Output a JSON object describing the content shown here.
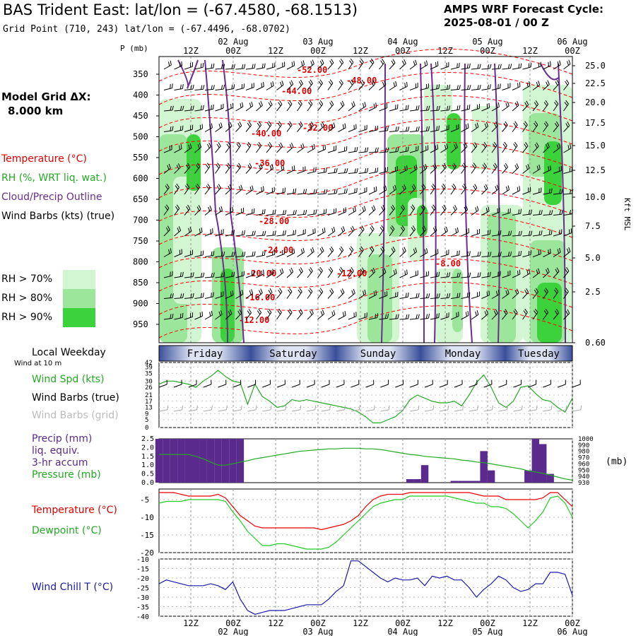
{
  "header": {
    "title": "BAS Trident East:  lat/lon = (-67.4580, -68.1513)",
    "grid_point": "Grid Point (710, 243) lat/lon = (-67.4496, -68.0702)",
    "cycle_line1": "AMPS WRF Forecast Cycle:",
    "cycle_line2": "2025-08-01 / 00  Z"
  },
  "model_grid": {
    "label": "Model Grid ΔX:",
    "value": "8.000 km"
  },
  "time_axis": {
    "hour_labels": [
      "12Z",
      "00Z",
      "12Z",
      "00Z",
      "12Z",
      "00Z",
      "12Z",
      "00Z",
      "12Z",
      "00Z"
    ],
    "date_labels": [
      "02 Aug",
      "03 Aug",
      "04 Aug",
      "05 Aug",
      "06 Aug"
    ]
  },
  "panel_top": {
    "p_label": "P (mb)",
    "kft_label": "Kft MSL",
    "left_legend": {
      "temperature": "Temperature (°C)",
      "rh": "RH (%, WRT liq. wat.)",
      "cloud": "Cloud/Precip Outline",
      "wind": "Wind Barbs (kts) (true)"
    },
    "rh_legend": [
      "RH > 70%",
      "RH > 80%",
      "RH > 90%"
    ],
    "rh_colors": [
      "#d2f5d2",
      "#9be69b",
      "#3cd23c"
    ],
    "pressure_ticks": [
      "350",
      "400",
      "450",
      "500",
      "550",
      "600",
      "650",
      "700",
      "750",
      "800",
      "850",
      "900",
      "950"
    ],
    "height_ticks": [
      "25.0",
      "22.5",
      "20.0",
      "17.5",
      "15.0",
      "12.5",
      "10.0",
      "7.5",
      "5.0",
      "2.5",
      "0.60"
    ],
    "temp_labels": [
      "-52.00",
      "-48.00",
      "-44.00",
      "-32.00",
      "-40.00",
      "-36.00",
      "-28.00",
      "-24.00",
      "-20.00",
      "-16.00",
      "-12.00",
      "-12.00",
      "-8.00"
    ],
    "colors": {
      "temperature": "#ff0000",
      "cloud": "#6b2d8f",
      "barb": "#000000"
    }
  },
  "weekday_bar": {
    "label": "Local Weekday",
    "days": [
      "Friday",
      "Saturday",
      "Sunday",
      "Monday",
      "Tuesday"
    ]
  },
  "chart_data": [
    {
      "type": "line",
      "title": "",
      "sub_label": "Wind at 10 m",
      "series": [
        {
          "name": "Wind Spd (kts)",
          "color": "#22aa22",
          "values": [
            28,
            30,
            30,
            29,
            28,
            26,
            30,
            33,
            37,
            33,
            30,
            29,
            15,
            28,
            20,
            17,
            13,
            14,
            18,
            17,
            18,
            17,
            16,
            15,
            14,
            13,
            12,
            10,
            7,
            3,
            3,
            5,
            7,
            11,
            18,
            21,
            19,
            17,
            16,
            16,
            17,
            14,
            21,
            29,
            34,
            26,
            16,
            13,
            17,
            26,
            27,
            22,
            18,
            17,
            13,
            10,
            19
          ]
        }
      ],
      "legend_labels": [
        "Wind Spd (kts)",
        "Wind Barbs (true)",
        "Wind Barbs (grid)"
      ],
      "yticks": [
        "42",
        "39",
        "35",
        "30",
        "26",
        "21",
        "17",
        "13",
        "9",
        "5",
        "0"
      ],
      "ylim": [
        0,
        42
      ]
    },
    {
      "type": "bar",
      "title": "",
      "series": [
        {
          "name": "Precip (mm) liq. equiv. 3-hr accum",
          "color": "#5a2a8c",
          "values": [
            2.5,
            2.5,
            2.5,
            2.5,
            2.5,
            2.5,
            2.5,
            2.5,
            2.5,
            2.5,
            2.5,
            2.5,
            0,
            0,
            0,
            0,
            0,
            0,
            0,
            0,
            0,
            0,
            0,
            0,
            0,
            0,
            0,
            0,
            0,
            0,
            0,
            0,
            0,
            0,
            0.2,
            0.2,
            1,
            0,
            0,
            0,
            0.1,
            0.1,
            0.1,
            0.1,
            1.8,
            0.7,
            0,
            0,
            0,
            0,
            0.7,
            2.5,
            2.2,
            0.5,
            0,
            0,
            0
          ]
        },
        {
          "name": "Pressure (mb)",
          "color": "#22aa22",
          "values": [
            975,
            975,
            975,
            975,
            975,
            972,
            968,
            963,
            958,
            958,
            960,
            963,
            965,
            968,
            970,
            972,
            974,
            976,
            978,
            980,
            981,
            982,
            983,
            984,
            984,
            985,
            985,
            985,
            984,
            984,
            983,
            981,
            979,
            977,
            975,
            974,
            972,
            971,
            970,
            969,
            968,
            966,
            965,
            963,
            962,
            960,
            958,
            956,
            954,
            952,
            949,
            947,
            945,
            942,
            939,
            936,
            934
          ]
        }
      ],
      "legend_labels": [
        "Precip (mm)",
        "liq. equiv.",
        "3-hr accum",
        "Pressure (mb)"
      ],
      "yticks_left": [
        "2.5",
        "2.0",
        "1.5",
        "1.0",
        "0.5",
        "0.0"
      ],
      "yticks_right": [
        "1000",
        "990",
        "980",
        "970",
        "960",
        "950",
        "940",
        "930"
      ],
      "unit_right": "(mb)",
      "ylim_left": [
        0,
        2.5
      ],
      "ylim_right": [
        930,
        1000
      ]
    },
    {
      "type": "line",
      "title": "",
      "series": [
        {
          "name": "Temperature (°C)",
          "color": "#ee0000",
          "values": [
            -3,
            -3,
            -3,
            -3.5,
            -4,
            -4,
            -4,
            -4,
            -3.5,
            -4.5,
            -7,
            -9.5,
            -11,
            -12.5,
            -13,
            -13,
            -13,
            -13,
            -13,
            -13,
            -13,
            -13,
            -13.5,
            -13,
            -12.5,
            -12,
            -11,
            -9.5,
            -7,
            -5,
            -4,
            -3.5,
            -3.5,
            -3.5,
            -3,
            -3,
            -3,
            -3,
            -3,
            -3,
            -3,
            -3,
            -3,
            -3.5,
            -4,
            -4,
            -4,
            -5,
            -5,
            -5,
            -5,
            -5,
            -4.5,
            -3,
            -3,
            -5,
            -7
          ]
        },
        {
          "name": "Dewpoint (°C)",
          "color": "#22cc22",
          "values": [
            -6,
            -5.5,
            -5.5,
            -5.5,
            -5,
            -5,
            -5,
            -5,
            -5,
            -5.5,
            -8.5,
            -11,
            -14,
            -16,
            -18,
            -18,
            -17.5,
            -17.5,
            -18,
            -18.5,
            -19,
            -19,
            -19,
            -18.5,
            -17,
            -15,
            -13,
            -11,
            -9,
            -7,
            -6,
            -5.5,
            -5,
            -5,
            -4,
            -4,
            -4,
            -4,
            -4,
            -4,
            -4.5,
            -5,
            -5.5,
            -6,
            -6,
            -7,
            -7,
            -7.5,
            -9,
            -11,
            -13,
            -11,
            -8.5,
            -4.5,
            -4,
            -6,
            -10
          ]
        }
      ],
      "legend_labels": [
        "Temperature (°C)",
        "Dewpoint (°C)"
      ],
      "yticks": [
        "-5",
        "-10",
        "-15",
        "-20"
      ],
      "ylim": [
        -20,
        -2
      ]
    },
    {
      "type": "line",
      "title": "",
      "series": [
        {
          "name": "Wind Chill T (°C)",
          "color": "#1a1aaa",
          "values": [
            -23,
            -21,
            -22,
            -23,
            -24,
            -24,
            -24,
            -23,
            -24,
            -26,
            -22,
            -31,
            -37,
            -39,
            -38,
            -37,
            -37,
            -37,
            -36,
            -35,
            -34,
            -34,
            -34,
            -31,
            -27,
            -24,
            -11,
            -11,
            -14,
            -17,
            -20,
            -22,
            -20,
            -21,
            -21,
            -20,
            -24,
            -19,
            -20,
            -19,
            -21,
            -21,
            -25,
            -30,
            -26,
            -23,
            -19,
            -21,
            -25,
            -27,
            -26,
            -23,
            -23,
            -17,
            -17,
            -18,
            -29
          ]
        }
      ],
      "legend_labels": [
        "Wind Chill T (°C)"
      ],
      "yticks": [
        "-10",
        "-15",
        "-20",
        "-25",
        "-30",
        "-35",
        "-40"
      ],
      "ylim": [
        -40,
        -10
      ]
    }
  ]
}
